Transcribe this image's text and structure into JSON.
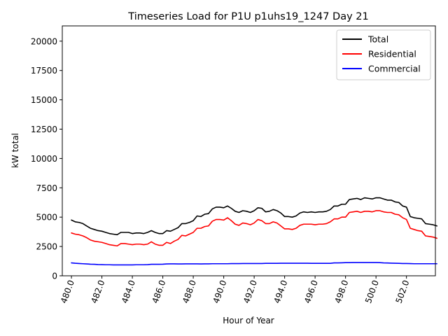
{
  "chart_data": {
    "type": "line",
    "title": "Timeseries Load for P1U p1uhs19_1247  Day 21",
    "xlabel": "Hour of Year",
    "ylabel": "kW total",
    "xlim": [
      479.4,
      503.9
    ],
    "ylim": [
      0,
      21300
    ],
    "x_ticks": [
      480.0,
      482.0,
      484.0,
      486.0,
      488.0,
      490.0,
      492.0,
      494.0,
      496.0,
      498.0,
      500.0,
      502.0
    ],
    "x_tick_labels": [
      "480.0",
      "482.0",
      "484.0",
      "486.0",
      "488.0",
      "490.0",
      "492.0",
      "494.0",
      "496.0",
      "498.0",
      "500.0",
      "502.0"
    ],
    "y_ticks": [
      0,
      2500,
      5000,
      7500,
      10000,
      12500,
      15000,
      17500,
      20000
    ],
    "y_tick_labels": [
      "0",
      "2500",
      "5000",
      "7500",
      "10000",
      "12500",
      "15000",
      "17500",
      "20000"
    ],
    "legend_position": "top-right",
    "x_start": 480.0,
    "x_step": 0.25,
    "series": [
      {
        "name": "Total",
        "color": "#000000",
        "values": [
          4750,
          4600,
          4550,
          4450,
          4250,
          4050,
          3950,
          3850,
          3800,
          3700,
          3600,
          3550,
          3500,
          3700,
          3700,
          3700,
          3600,
          3650,
          3650,
          3600,
          3700,
          3850,
          3700,
          3600,
          3600,
          3850,
          3800,
          3950,
          4100,
          4450,
          4450,
          4550,
          4700,
          5100,
          5050,
          5250,
          5300,
          5700,
          5850,
          5850,
          5800,
          5950,
          5750,
          5500,
          5400,
          5550,
          5500,
          5400,
          5550,
          5800,
          5750,
          5450,
          5500,
          5650,
          5550,
          5350,
          5050,
          5050,
          5000,
          5100,
          5350,
          5450,
          5400,
          5450,
          5400,
          5450,
          5450,
          5500,
          5650,
          5950,
          5950,
          6100,
          6100,
          6500,
          6550,
          6600,
          6500,
          6650,
          6600,
          6550,
          6650,
          6650,
          6550,
          6450,
          6450,
          6300,
          6250,
          5950,
          5850,
          5050,
          4950,
          4900,
          4850,
          4450,
          4400,
          4350,
          4250
        ]
      },
      {
        "name": "Residential",
        "color": "#ff0000",
        "values": [
          3650,
          3550,
          3500,
          3400,
          3250,
          3050,
          2950,
          2900,
          2850,
          2750,
          2650,
          2600,
          2550,
          2750,
          2750,
          2700,
          2650,
          2700,
          2700,
          2650,
          2700,
          2900,
          2700,
          2600,
          2600,
          2850,
          2750,
          2950,
          3100,
          3450,
          3400,
          3550,
          3700,
          4050,
          4050,
          4200,
          4250,
          4650,
          4800,
          4800,
          4750,
          4950,
          4700,
          4400,
          4300,
          4500,
          4450,
          4350,
          4500,
          4800,
          4700,
          4450,
          4450,
          4600,
          4500,
          4250,
          4000,
          4000,
          3950,
          4050,
          4300,
          4400,
          4400,
          4400,
          4350,
          4400,
          4400,
          4450,
          4600,
          4850,
          4850,
          5000,
          5000,
          5400,
          5450,
          5500,
          5400,
          5500,
          5500,
          5450,
          5550,
          5550,
          5450,
          5400,
          5400,
          5250,
          5200,
          4950,
          4800,
          4050,
          3950,
          3850,
          3800,
          3400,
          3350,
          3300,
          3200
        ]
      },
      {
        "name": "Commercial",
        "color": "#0000ff",
        "values": [
          1100,
          1070,
          1050,
          1030,
          1010,
          990,
          980,
          960,
          950,
          940,
          940,
          930,
          930,
          930,
          930,
          930,
          930,
          940,
          940,
          940,
          950,
          980,
          980,
          980,
          990,
          1010,
          1020,
          1020,
          1010,
          1010,
          1020,
          1020,
          1020,
          1020,
          1010,
          1020,
          1020,
          1030,
          1030,
          1030,
          1030,
          1030,
          1040,
          1040,
          1040,
          1050,
          1050,
          1050,
          1050,
          1050,
          1050,
          1060,
          1060,
          1060,
          1060,
          1070,
          1070,
          1070,
          1070,
          1070,
          1070,
          1070,
          1070,
          1060,
          1060,
          1060,
          1060,
          1060,
          1060,
          1100,
          1100,
          1110,
          1120,
          1120,
          1130,
          1130,
          1130,
          1130,
          1130,
          1130,
          1130,
          1120,
          1100,
          1090,
          1080,
          1070,
          1060,
          1050,
          1050,
          1040,
          1030,
          1030,
          1030,
          1030,
          1030,
          1030,
          1030
        ]
      }
    ]
  }
}
